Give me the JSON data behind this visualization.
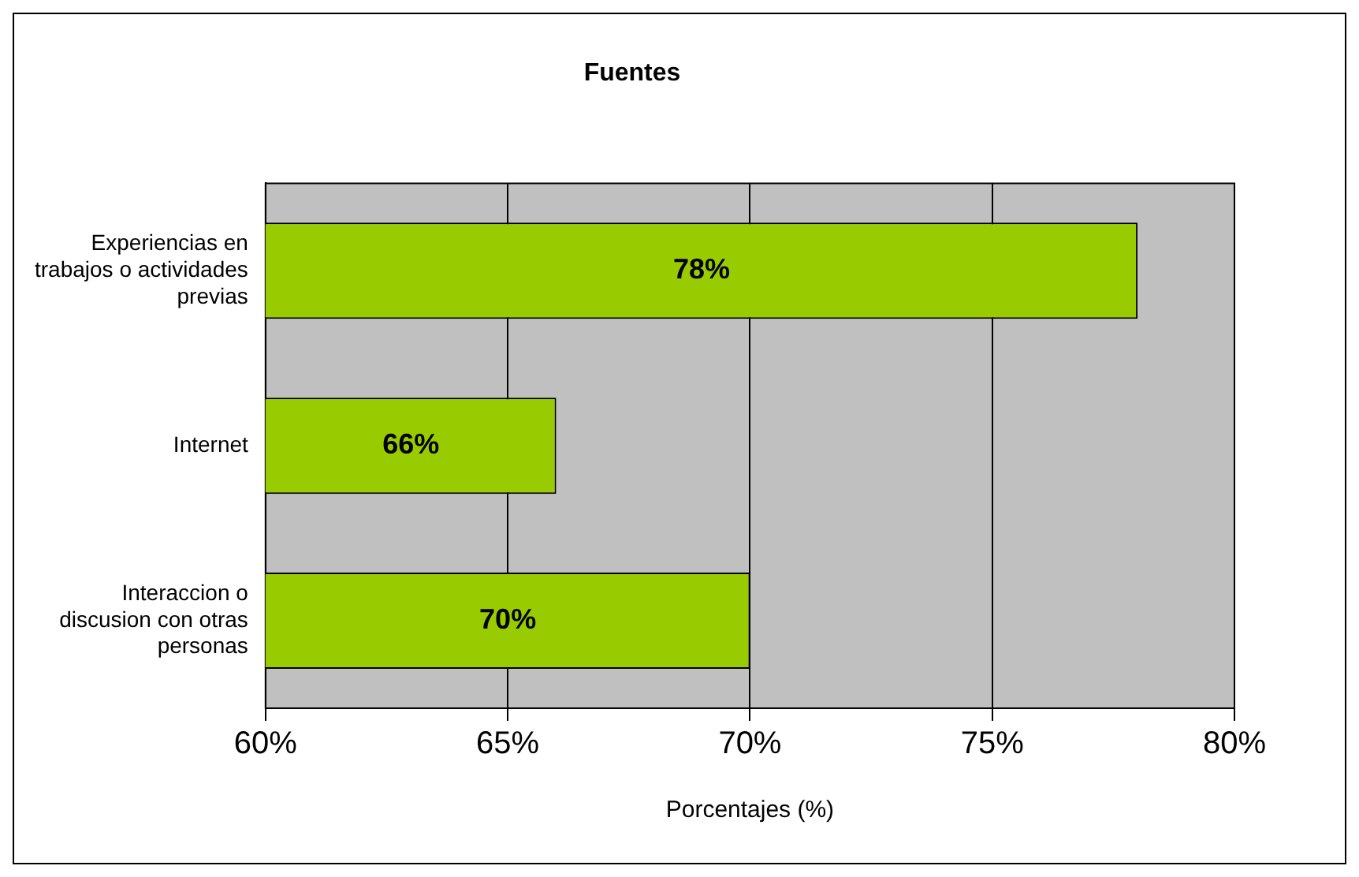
{
  "chart_data": {
    "type": "bar",
    "orientation": "horizontal",
    "title": "Fuentes",
    "xlabel": "Porcentajes (%)",
    "categories": [
      "Experiencias en trabajos o actividades previas",
      "Internet",
      "Interaccion o discusion con otras personas"
    ],
    "values": [
      78,
      66,
      70
    ],
    "color": "#99cc00",
    "value_labels": [
      "78%",
      "66%",
      "70%"
    ],
    "xlim": [
      60,
      80
    ],
    "xticks": [
      {
        "value": 60,
        "label": "60%"
      },
      {
        "value": 65,
        "label": "65%"
      },
      {
        "value": 70,
        "label": "70%"
      },
      {
        "value": 75,
        "label": "75%"
      },
      {
        "value": 80,
        "label": "80%"
      }
    ],
    "grid": "x",
    "legend": false
  }
}
